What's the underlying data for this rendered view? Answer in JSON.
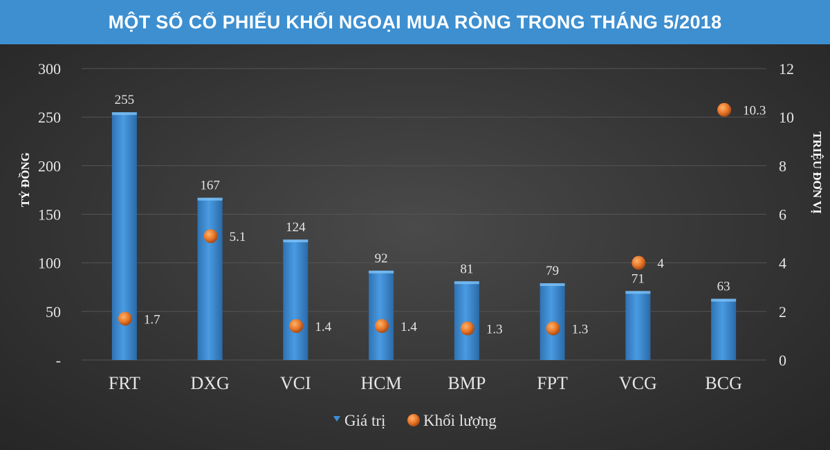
{
  "header": {
    "title": "MỘT SỐ CỔ PHIẾU KHỐI NGOẠI MUA RÒNG TRONG THÁNG 5/2018"
  },
  "colors": {
    "banner": "#3d8fd0",
    "bar": "#3d8fd8",
    "dot": "#e8772a",
    "text": "#e6e6e6"
  },
  "chart_data": {
    "type": "bar",
    "categories": [
      "FRT",
      "DXG",
      "VCI",
      "HCM",
      "BMP",
      "FPT",
      "VCG",
      "BCG"
    ],
    "series": [
      {
        "name": "Giá trị",
        "type": "bar",
        "axis": "left",
        "values": [
          255,
          167,
          124,
          92,
          81,
          79,
          71,
          63
        ]
      },
      {
        "name": "Khối lượng",
        "type": "scatter",
        "axis": "right",
        "values": [
          1.7,
          5.1,
          1.4,
          1.4,
          1.3,
          1.3,
          4,
          10.3
        ]
      }
    ],
    "ylabel": "TỶ ĐỒNG",
    "y2label": "TRIỆU ĐƠN VỊ",
    "ylim": [
      0,
      300
    ],
    "y2lim": [
      0,
      12
    ],
    "yticks": [
      "-",
      "50",
      "100",
      "150",
      "200",
      "250",
      "300"
    ],
    "y2ticks": [
      "0",
      "2",
      "4",
      "6",
      "8",
      "10",
      "12"
    ],
    "grid": true,
    "legend": "bottom"
  }
}
